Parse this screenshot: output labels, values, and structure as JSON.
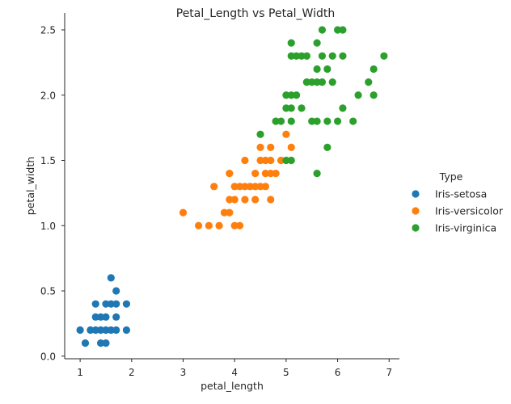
{
  "chart_data": {
    "type": "scatter",
    "title": "Petal_Length vs Petal_Width",
    "xlabel": "petal_length",
    "ylabel": "petal_width",
    "xlim": [
      0.7,
      7.2
    ],
    "ylim": [
      -0.02,
      2.63
    ],
    "xticks": [
      "1",
      "2",
      "3",
      "4",
      "5",
      "6",
      "7"
    ],
    "yticks": [
      "0.0",
      "0.5",
      "1.0",
      "1.5",
      "2.0",
      "2.5"
    ],
    "grid": false,
    "legend": {
      "title": "Type",
      "placement": "right"
    },
    "series": [
      {
        "name": "Iris-setosa",
        "color": "#1f77b4",
        "points": [
          [
            1.0,
            0.2
          ],
          [
            1.1,
            0.1
          ],
          [
            1.2,
            0.2
          ],
          [
            1.3,
            0.2
          ],
          [
            1.3,
            0.3
          ],
          [
            1.3,
            0.4
          ],
          [
            1.4,
            0.1
          ],
          [
            1.4,
            0.2
          ],
          [
            1.4,
            0.3
          ],
          [
            1.5,
            0.1
          ],
          [
            1.5,
            0.2
          ],
          [
            1.5,
            0.3
          ],
          [
            1.5,
            0.4
          ],
          [
            1.6,
            0.2
          ],
          [
            1.6,
            0.4
          ],
          [
            1.6,
            0.6
          ],
          [
            1.7,
            0.2
          ],
          [
            1.7,
            0.3
          ],
          [
            1.7,
            0.4
          ],
          [
            1.7,
            0.5
          ],
          [
            1.9,
            0.2
          ],
          [
            1.9,
            0.4
          ]
        ]
      },
      {
        "name": "Iris-versicolor",
        "color": "#ff7f0e",
        "points": [
          [
            3.0,
            1.1
          ],
          [
            3.3,
            1.0
          ],
          [
            3.5,
            1.0
          ],
          [
            3.6,
            1.3
          ],
          [
            3.7,
            1.0
          ],
          [
            3.8,
            1.1
          ],
          [
            3.9,
            1.1
          ],
          [
            3.9,
            1.2
          ],
          [
            3.9,
            1.4
          ],
          [
            4.0,
            1.0
          ],
          [
            4.0,
            1.2
          ],
          [
            4.0,
            1.3
          ],
          [
            4.1,
            1.0
          ],
          [
            4.1,
            1.3
          ],
          [
            4.2,
            1.2
          ],
          [
            4.2,
            1.3
          ],
          [
            4.2,
            1.5
          ],
          [
            4.3,
            1.3
          ],
          [
            4.4,
            1.2
          ],
          [
            4.4,
            1.3
          ],
          [
            4.4,
            1.4
          ],
          [
            4.5,
            1.3
          ],
          [
            4.5,
            1.5
          ],
          [
            4.5,
            1.6
          ],
          [
            4.6,
            1.3
          ],
          [
            4.6,
            1.4
          ],
          [
            4.6,
            1.5
          ],
          [
            4.7,
            1.2
          ],
          [
            4.7,
            1.4
          ],
          [
            4.7,
            1.5
          ],
          [
            4.7,
            1.6
          ],
          [
            4.8,
            1.4
          ],
          [
            4.8,
            1.8
          ],
          [
            4.9,
            1.5
          ],
          [
            5.0,
            1.7
          ],
          [
            5.1,
            1.6
          ]
        ]
      },
      {
        "name": "Iris-virginica",
        "color": "#2ca02c",
        "points": [
          [
            4.5,
            1.7
          ],
          [
            4.8,
            1.8
          ],
          [
            4.9,
            1.8
          ],
          [
            5.0,
            1.5
          ],
          [
            5.0,
            1.9
          ],
          [
            5.0,
            2.0
          ],
          [
            5.1,
            1.5
          ],
          [
            5.1,
            1.8
          ],
          [
            5.1,
            1.9
          ],
          [
            5.1,
            2.0
          ],
          [
            5.1,
            2.3
          ],
          [
            5.1,
            2.4
          ],
          [
            5.2,
            2.0
          ],
          [
            5.2,
            2.3
          ],
          [
            5.3,
            1.9
          ],
          [
            5.3,
            2.3
          ],
          [
            5.4,
            2.1
          ],
          [
            5.4,
            2.3
          ],
          [
            5.5,
            1.8
          ],
          [
            5.5,
            2.1
          ],
          [
            5.6,
            1.4
          ],
          [
            5.6,
            1.8
          ],
          [
            5.6,
            2.1
          ],
          [
            5.6,
            2.2
          ],
          [
            5.6,
            2.4
          ],
          [
            5.7,
            2.1
          ],
          [
            5.7,
            2.3
          ],
          [
            5.7,
            2.5
          ],
          [
            5.8,
            1.6
          ],
          [
            5.8,
            1.8
          ],
          [
            5.8,
            2.2
          ],
          [
            5.9,
            2.1
          ],
          [
            5.9,
            2.3
          ],
          [
            6.0,
            1.8
          ],
          [
            6.0,
            2.5
          ],
          [
            6.1,
            1.9
          ],
          [
            6.1,
            2.3
          ],
          [
            6.1,
            2.5
          ],
          [
            6.3,
            1.8
          ],
          [
            6.4,
            2.0
          ],
          [
            6.6,
            2.1
          ],
          [
            6.7,
            2.0
          ],
          [
            6.7,
            2.2
          ],
          [
            6.9,
            2.3
          ]
        ]
      }
    ]
  }
}
